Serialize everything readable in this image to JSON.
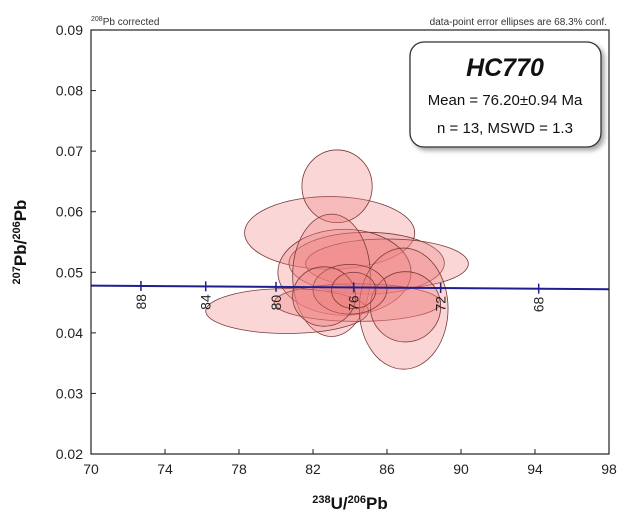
{
  "chart_data": {
    "type": "scatter",
    "subtype": "tera-wasserburg-concordia",
    "xlabel": {
      "mass": "238",
      "el": "U/",
      "mass2": "206",
      "el2": "Pb"
    },
    "ylabel": {
      "mass": "207",
      "el": "Pb/",
      "mass2": "206",
      "el2": "Pb"
    },
    "xlim": [
      70,
      98
    ],
    "ylim": [
      0.02,
      0.09
    ],
    "xticks": [
      "70",
      "74",
      "78",
      "82",
      "86",
      "90",
      "94",
      "98"
    ],
    "yticks": [
      "0.02",
      "0.03",
      "0.04",
      "0.05",
      "0.06",
      "0.07",
      "0.08",
      "0.09"
    ],
    "note_left": {
      "sup": "208",
      "text": "Pb corrected"
    },
    "note_right": "data-point  error ellipses  are 68.3% conf.",
    "result": {
      "title": "HC770",
      "mean_prefix": "Mean = ",
      "mean_value": "76.20",
      "pm": "±",
      "mean_error": "0.94",
      "mean_unit": " Ma",
      "stats": "n = 13, MSWD = 1.3"
    },
    "concordia": {
      "color": "#1f1f8f",
      "points": [
        [
          70,
          0.0478
        ],
        [
          98,
          0.0472
        ]
      ],
      "ages": [
        {
          "label": "88",
          "x": 72.7,
          "y": 0.04775
        },
        {
          "label": "84",
          "x": 76.2,
          "y": 0.04768
        },
        {
          "label": "80",
          "x": 80.0,
          "y": 0.0476
        },
        {
          "label": "76",
          "x": 84.2,
          "y": 0.04751
        },
        {
          "label": "72",
          "x": 88.9,
          "y": 0.04741
        },
        {
          "label": "68",
          "x": 94.2,
          "y": 0.0473
        }
      ]
    },
    "ellipse_fill": "#f08080",
    "ellipse_stroke": "#7a3838",
    "ellipses": [
      {
        "cx": 82.9,
        "cy": 0.0565,
        "rx": 4.6,
        "ry": 0.006
      },
      {
        "cx": 83.3,
        "cy": 0.0642,
        "rx": 1.9,
        "ry": 0.006
      },
      {
        "cx": 84.9,
        "cy": 0.0515,
        "rx": 4.2,
        "ry": 0.0051
      },
      {
        "cx": 86.0,
        "cy": 0.0514,
        "rx": 4.4,
        "ry": 0.0041
      },
      {
        "cx": 83.7,
        "cy": 0.05,
        "rx": 3.6,
        "ry": 0.0071
      },
      {
        "cx": 83.0,
        "cy": 0.0495,
        "rx": 2.1,
        "ry": 0.0101
      },
      {
        "cx": 84.4,
        "cy": 0.045,
        "rx": 4.5,
        "ry": 0.0031
      },
      {
        "cx": 80.6,
        "cy": 0.0436,
        "rx": 4.4,
        "ry": 0.0037
      },
      {
        "cx": 86.9,
        "cy": 0.044,
        "rx": 2.4,
        "ry": 0.01
      },
      {
        "cx": 87.0,
        "cy": 0.0443,
        "rx": 1.9,
        "ry": 0.0058
      },
      {
        "cx": 84.0,
        "cy": 0.0472,
        "rx": 2.0,
        "ry": 0.0041
      },
      {
        "cx": 82.6,
        "cy": 0.046,
        "rx": 1.7,
        "ry": 0.0049
      },
      {
        "cx": 84.2,
        "cy": 0.047,
        "rx": 1.2,
        "ry": 0.003
      }
    ]
  }
}
